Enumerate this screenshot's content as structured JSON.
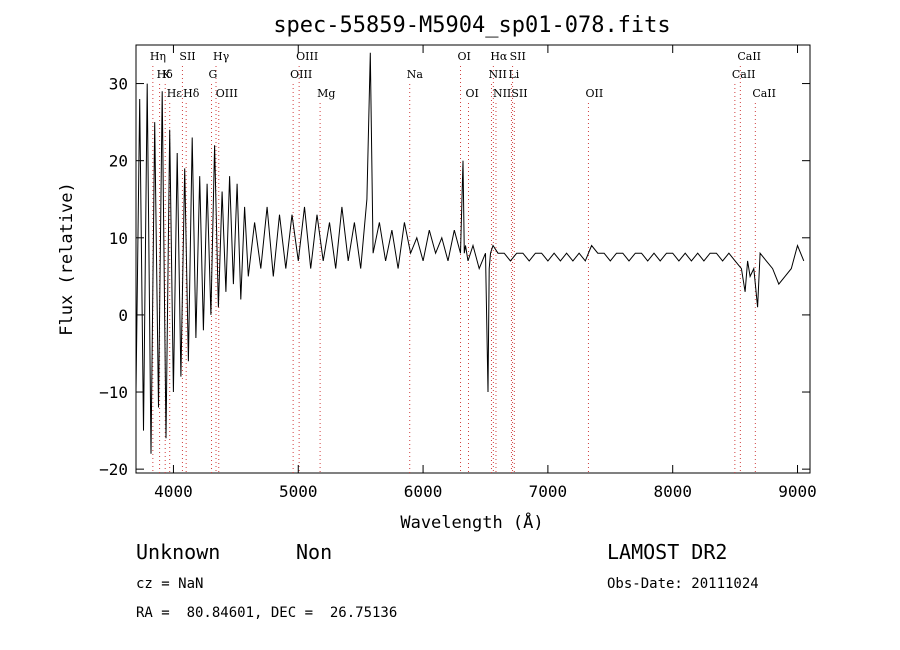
{
  "chart_data": {
    "type": "line",
    "title": "spec-55859-M5904_sp01-078.fits",
    "xlabel": "Wavelength (Å)",
    "ylabel": "Flux (relative)",
    "xlim": [
      3700,
      9100
    ],
    "ylim": [
      -20.5,
      35
    ],
    "x_ticks": [
      4000,
      5000,
      6000,
      7000,
      8000,
      9000
    ],
    "y_ticks": [
      -20,
      -10,
      0,
      10,
      20,
      30
    ],
    "grid": false,
    "line_markers": [
      {
        "label": "Hη",
        "x": 3835,
        "row": 0
      },
      {
        "label": "Hδ",
        "x": 3889,
        "row": 1
      },
      {
        "label": "K",
        "x": 3934,
        "row": 1
      },
      {
        "label": "Hε",
        "x": 3970,
        "row": 2
      },
      {
        "label": "SII",
        "x": 4072,
        "row": 0
      },
      {
        "label": "Hδ",
        "x": 4102,
        "row": 2
      },
      {
        "label": "Hγ",
        "x": 4341,
        "row": 0
      },
      {
        "label": "G",
        "x": 4305,
        "row": 1
      },
      {
        "label": "OIII",
        "x": 4363,
        "row": 2
      },
      {
        "label": "OIII",
        "x": 5007,
        "row": 0
      },
      {
        "label": "OIII",
        "x": 4959,
        "row": 1
      },
      {
        "label": "Mg",
        "x": 5175,
        "row": 2
      },
      {
        "label": "Na",
        "x": 5893,
        "row": 1
      },
      {
        "label": "OI",
        "x": 6300,
        "row": 0
      },
      {
        "label": "OI",
        "x": 6364,
        "row": 2
      },
      {
        "label": "Hα",
        "x": 6563,
        "row": 0
      },
      {
        "label": "NII",
        "x": 6548,
        "row": 1
      },
      {
        "label": "NII",
        "x": 6584,
        "row": 2
      },
      {
        "label": "SII",
        "x": 6717,
        "row": 0
      },
      {
        "label": "Li",
        "x": 6708,
        "row": 1
      },
      {
        "label": "SII",
        "x": 6731,
        "row": 2
      },
      {
        "label": "OII",
        "x": 7325,
        "row": 2
      },
      {
        "label": "CaII",
        "x": 8542,
        "row": 0
      },
      {
        "label": "CaII",
        "x": 8498,
        "row": 1
      },
      {
        "label": "CaII",
        "x": 8662,
        "row": 2
      }
    ],
    "series": [
      {
        "x": [
          3700,
          3730,
          3760,
          3790,
          3820,
          3850,
          3880,
          3910,
          3940,
          3970,
          4000,
          4030,
          4060,
          4090,
          4120,
          4150,
          4180,
          4210,
          4240,
          4270,
          4300,
          4330,
          4360,
          4390,
          4420,
          4450,
          4480,
          4510,
          4540,
          4570,
          4600,
          4650,
          4700,
          4750,
          4800,
          4850,
          4900,
          4950,
          5000,
          5050,
          5100,
          5150,
          5200,
          5250,
          5300,
          5350,
          5400,
          5450,
          5500,
          5550,
          5577,
          5600,
          5650,
          5700,
          5750,
          5800,
          5850,
          5900,
          5950,
          6000,
          6050,
          6100,
          6150,
          6200,
          6250,
          6300,
          6320,
          6330,
          6340,
          6360,
          6400,
          6450,
          6500,
          6520,
          6530,
          6540,
          6560,
          6600,
          6650,
          6700,
          6750,
          6800,
          6850,
          6900,
          6950,
          7000,
          7050,
          7100,
          7150,
          7200,
          7250,
          7300,
          7350,
          7400,
          7450,
          7500,
          7550,
          7600,
          7650,
          7700,
          7750,
          7800,
          7850,
          7900,
          7950,
          8000,
          8050,
          8100,
          8150,
          8200,
          8250,
          8300,
          8350,
          8400,
          8450,
          8500,
          8550,
          8580,
          8600,
          8620,
          8650,
          8680,
          8700,
          8750,
          8800,
          8850,
          8900,
          8950,
          9000,
          9050
        ],
        "y": [
          -10,
          28,
          -15,
          30,
          -18,
          25,
          -12,
          29,
          -16,
          24,
          -10,
          21,
          -8,
          19,
          -6,
          23,
          -3,
          18,
          -2,
          17,
          0,
          22,
          1,
          16,
          3,
          18,
          4,
          17,
          2,
          14,
          5,
          12,
          6,
          14,
          5,
          13,
          6,
          13,
          7,
          14,
          6,
          13,
          7,
          12,
          6,
          14,
          7,
          12,
          6,
          15,
          34,
          8,
          12,
          7,
          11,
          6,
          12,
          8,
          10,
          7,
          11,
          8,
          10,
          7,
          11,
          8,
          20,
          8,
          9,
          7,
          9,
          6,
          8,
          -10,
          6,
          8,
          9,
          8,
          8,
          7,
          8,
          8,
          7,
          8,
          8,
          7,
          8,
          7,
          8,
          7,
          8,
          7,
          9,
          8,
          8,
          7,
          8,
          8,
          7,
          8,
          8,
          7,
          8,
          7,
          8,
          8,
          7,
          8,
          7,
          8,
          7,
          8,
          8,
          7,
          8,
          7,
          6,
          3,
          7,
          5,
          6,
          1,
          8,
          7,
          6,
          4,
          5,
          6,
          9,
          7
        ]
      }
    ]
  },
  "footer": {
    "object_class": "Unknown",
    "subclass": "Non",
    "survey": "LAMOST DR2",
    "cz": "cz = NaN",
    "obs_date": "Obs-Date: 20111024",
    "coords": "RA =  80.84601, DEC =  26.75136"
  }
}
